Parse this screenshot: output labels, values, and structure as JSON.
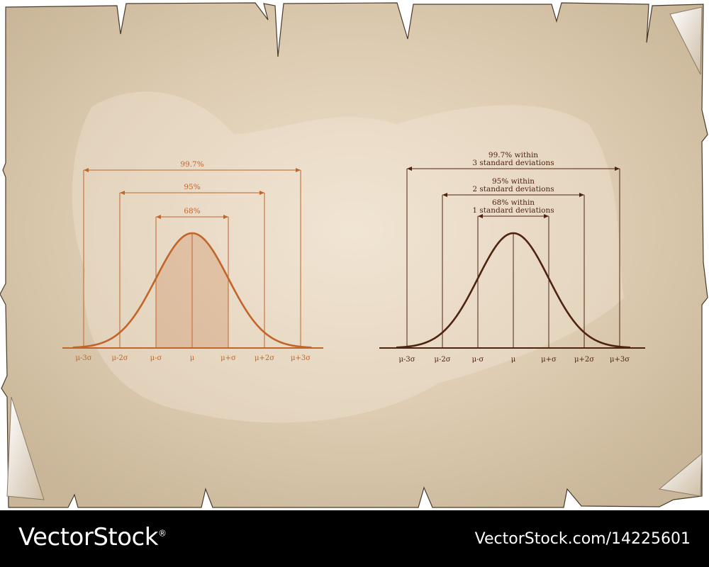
{
  "chart_data": [
    {
      "type": "line",
      "style": "filled",
      "x": [
        "μ-3σ",
        "μ-2σ",
        "μ-σ",
        "μ",
        "μ+σ",
        "μ+2σ",
        "μ+3σ"
      ],
      "x_values": [
        -3,
        -2,
        -1,
        0,
        1,
        2,
        3
      ],
      "series": [
        {
          "distribution": "normal",
          "mean": 0,
          "sd": 1
        }
      ],
      "shaded_range": [
        -1,
        1
      ],
      "ranges": [
        {
          "from": -1,
          "to": 1,
          "label": "68%"
        },
        {
          "from": -2,
          "to": 2,
          "label": "95%"
        },
        {
          "from": -3,
          "to": 3,
          "label": "99.7%"
        }
      ],
      "color": "#c1652a"
    },
    {
      "type": "line",
      "style": "outline",
      "x": [
        "μ-3σ",
        "μ-2σ",
        "μ-σ",
        "μ",
        "μ+σ",
        "μ+2σ",
        "μ+3σ"
      ],
      "x_values": [
        -3,
        -2,
        -1,
        0,
        1,
        2,
        3
      ],
      "series": [
        {
          "distribution": "normal",
          "mean": 0,
          "sd": 1
        }
      ],
      "ranges": [
        {
          "from": -1,
          "to": 1,
          "label": [
            "68% within",
            "1 standard deviations"
          ]
        },
        {
          "from": -2,
          "to": 2,
          "label": [
            "95% within",
            "2 standard deviations"
          ]
        },
        {
          "from": -3,
          "to": 3,
          "label": [
            "99.7% within",
            "3 standard deviations"
          ]
        }
      ],
      "color": "#4e2410"
    }
  ],
  "footer": {
    "brand": "VectorStock",
    "registered_mark": "®",
    "image_ref": "VectorStock.com/14225601"
  },
  "colors": {
    "paper": "#d8c6ad",
    "paper_center": "#eee1cc",
    "paper_edge": "#b8a78e"
  }
}
